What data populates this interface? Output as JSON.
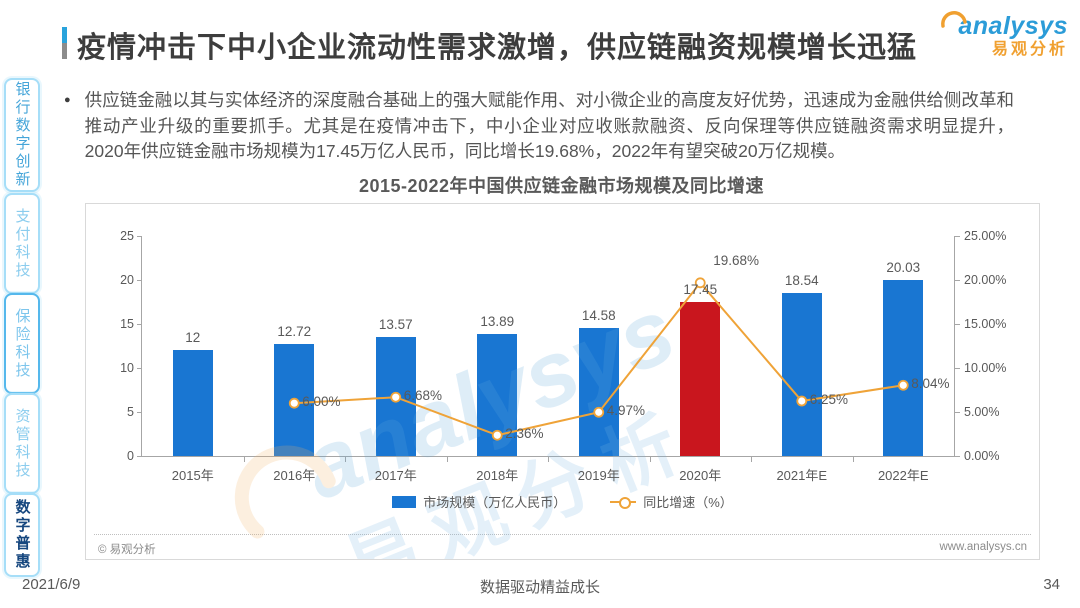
{
  "header": {
    "title": "疫情冲击下中小企业流动性需求激增，供应链融资规模增长迅猛"
  },
  "logo": {
    "brand": "analysys",
    "brand_cn": "易观分析",
    "brand_color": "#2B9CD8",
    "accent_color": "#F0A030"
  },
  "sidebar": {
    "items": [
      {
        "label": "银行数字创新",
        "text_color": "#45A5D9",
        "border_color": "#A6DEF8",
        "active": false
      },
      {
        "label": "支付科技",
        "text_color": "#8ACCEE",
        "border_color": "#A6DEF8",
        "active": false
      },
      {
        "label": "保险科技",
        "text_color": "#7CC5EC",
        "border_color": "#55B8EC",
        "active": false
      },
      {
        "label": "资管科技",
        "text_color": "#8ACCEE",
        "border_color": "#A6DEF8",
        "active": false
      },
      {
        "label": "数字普惠",
        "text_color": "#16477F",
        "border_color": "#A6DEF8",
        "active": true
      }
    ]
  },
  "intro": {
    "bullet": "●",
    "text": "供应链金融以其与实体经济的深度融合基础上的强大赋能作用、对小微企业的高度友好优势，迅速成为金融供给侧改革和推动产业升级的重要抓手。尤其是在疫情冲击下，中小企业对应收账款融资、反向保理等供应链融资需求明显提升，2020年供应链金融市场规模为17.45万亿人民币，同比增长19.68%，2022年有望突破20万亿规模。"
  },
  "chart_card": {
    "copyright": "© 易观分析",
    "website": "www.analysys.cn",
    "watermark_brand": "analysys",
    "watermark_cn": "易观分析"
  },
  "chart_data": {
    "type": "bar+line",
    "title": "2015-2022年中国供应链金融市场规模及同比增速",
    "categories": [
      "2015年",
      "2016年",
      "2017年",
      "2018年",
      "2019年",
      "2020年",
      "2021年E",
      "2022年E"
    ],
    "series": [
      {
        "name": "市场规模（万亿人民币）",
        "type": "bar",
        "values": [
          12,
          12.72,
          13.57,
          13.89,
          14.58,
          17.45,
          18.54,
          20.03
        ],
        "labels": [
          "12",
          "12.72",
          "13.57",
          "13.89",
          "14.58",
          "17.45",
          "18.54",
          "20.03"
        ],
        "highlight_index": 5
      },
      {
        "name": "同比增速（%）",
        "type": "line",
        "values": [
          null,
          6.0,
          6.68,
          2.36,
          4.97,
          19.68,
          6.25,
          8.04
        ],
        "labels": [
          null,
          "6.00%",
          "6.68%",
          "2.36%",
          "4.97%",
          "19.68%",
          "6.25%",
          "8.04%"
        ]
      }
    ],
    "left_axis": {
      "min": 0,
      "max": 25,
      "tick_labels": [
        "0",
        "5",
        "10",
        "15",
        "20",
        "25"
      ]
    },
    "right_axis": {
      "min": 0,
      "max": 25,
      "tick_labels": [
        "0.00%",
        "5.00%",
        "10.00%",
        "15.00%",
        "20.00%",
        "25.00%"
      ]
    },
    "grid": false,
    "legend_position": "bottom",
    "colors": {
      "bar": "#1976D2",
      "bar_highlight": "#C9161E",
      "line": "#EFA338"
    }
  },
  "footer": {
    "date": "2021/6/9",
    "slogan": "数据驱动精益成长",
    "page_number": "34"
  }
}
